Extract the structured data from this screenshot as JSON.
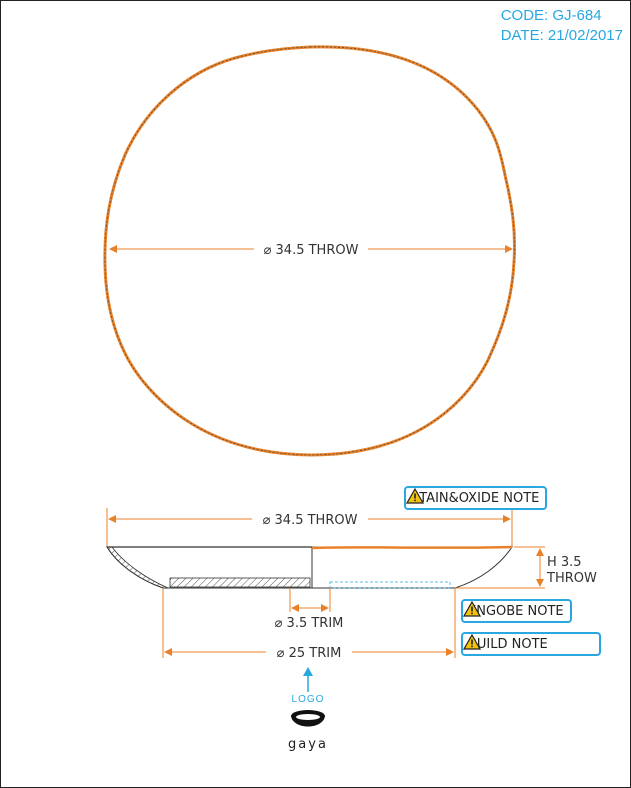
{
  "meta": {
    "code": "CODE: GJ-684",
    "date": "DATE: 21/02/2017"
  },
  "top_view": {
    "diameter_label": "⌀ 34.5 THROW"
  },
  "side_view": {
    "outer_diameter_label": "⌀ 34.5 THROW",
    "height_label_line1": "H 3.5",
    "height_label_line2": "THROW",
    "foot_trim_label": "⌀ 3.5 TRIM",
    "base_trim_label": "⌀ 25 TRIM"
  },
  "notes": [
    {
      "label": "STAIN&OXIDE NOTE",
      "icon": "warning-icon"
    },
    {
      "label": "ENGOBE NOTE",
      "icon": "warning-icon"
    },
    {
      "label": "BUILD NOTE",
      "icon": "warning-icon"
    }
  ],
  "logo": {
    "label": "LOGO",
    "wordmark": "gaya"
  },
  "colors": {
    "accent": "#29a8e0",
    "outline": "#e8822a",
    "dimension": "#e8822a",
    "warning": "#f2c20f"
  }
}
